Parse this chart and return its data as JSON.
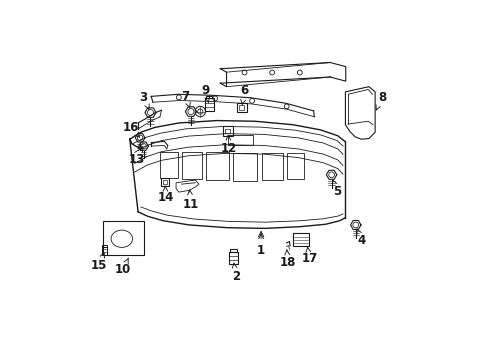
{
  "background_color": "#ffffff",
  "line_color": "#1a1a1a",
  "figsize": [
    4.89,
    3.6
  ],
  "dpi": 100,
  "font_size": 8.5,
  "font_weight": "bold",
  "label_positions": {
    "1": [
      0.548,
      0.295,
      0.548,
      0.355
    ],
    "2": [
      0.475,
      0.22,
      0.468,
      0.27
    ],
    "3": [
      0.208,
      0.74,
      0.228,
      0.695
    ],
    "4": [
      0.84,
      0.325,
      0.822,
      0.368
    ],
    "5": [
      0.768,
      0.468,
      0.752,
      0.51
    ],
    "6": [
      0.5,
      0.758,
      0.492,
      0.708
    ],
    "7": [
      0.33,
      0.742,
      0.345,
      0.7
    ],
    "8": [
      0.898,
      0.74,
      0.88,
      0.7
    ],
    "9": [
      0.388,
      0.758,
      0.398,
      0.715
    ],
    "10": [
      0.148,
      0.24,
      0.168,
      0.282
    ],
    "11": [
      0.345,
      0.43,
      0.34,
      0.482
    ],
    "12": [
      0.455,
      0.592,
      0.452,
      0.64
    ],
    "13": [
      0.188,
      0.558,
      0.205,
      0.598
    ],
    "14": [
      0.272,
      0.448,
      0.27,
      0.492
    ],
    "15": [
      0.078,
      0.252,
      0.095,
      0.292
    ],
    "16": [
      0.172,
      0.652,
      0.198,
      0.622
    ],
    "17": [
      0.688,
      0.272,
      0.682,
      0.308
    ],
    "18": [
      0.625,
      0.262,
      0.622,
      0.308
    ]
  }
}
